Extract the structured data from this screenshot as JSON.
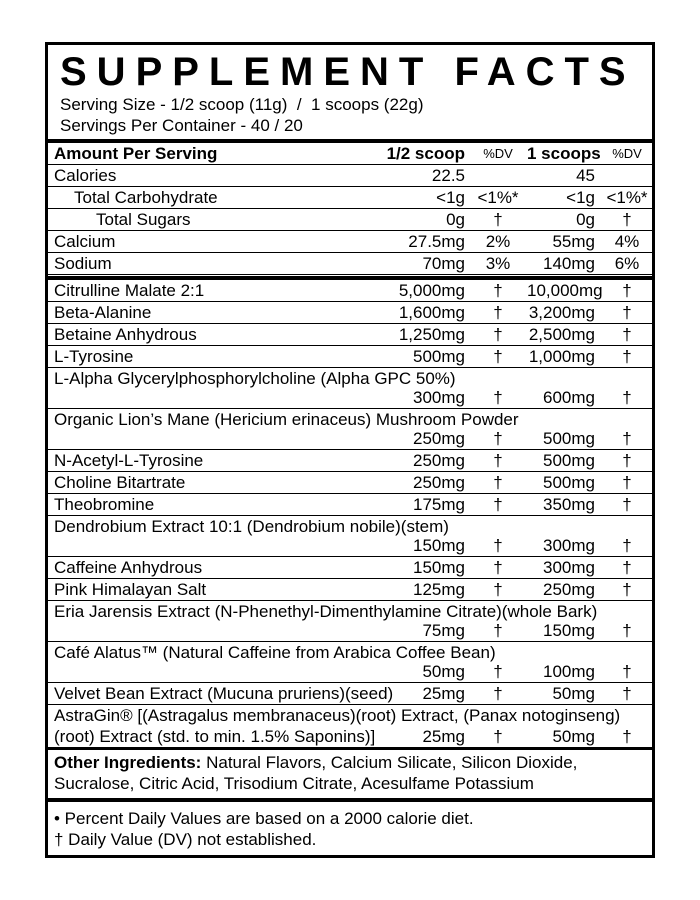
{
  "label": {
    "title": "SUPPLEMENT FACTS",
    "serving_size": "Serving Size - 1/2 scoop (11g)  /  1 scoops (22g)",
    "servings_per_container": "Servings Per Container - 40 / 20",
    "columns": {
      "amount_per_serving": "Amount Per Serving",
      "half_scoop": "1/2 scoop",
      "half_scoop_dv": "%DV",
      "one_scoop": "1 scoops",
      "one_scoop_dv": "%DV"
    },
    "nutrients": [
      {
        "name": "Calories",
        "amt1": "22.5",
        "dv1": "",
        "amt2": "45",
        "dv2": "",
        "indent": 0
      },
      {
        "name": "Total Carbohydrate",
        "amt1": "<1g",
        "dv1": "<1%*",
        "amt2": "<1g",
        "dv2": "<1%*",
        "indent": 1
      },
      {
        "name": "Total Sugars",
        "amt1": "0g",
        "dv1": "†",
        "amt2": "0g",
        "dv2": "†",
        "indent": 2
      },
      {
        "name": "Calcium",
        "amt1": "27.5mg",
        "dv1": "2%",
        "amt2": "55mg",
        "dv2": "4%",
        "indent": 0
      },
      {
        "name": "Sodium",
        "amt1": "70mg",
        "dv1": "3%",
        "amt2": "140mg",
        "dv2": "6%",
        "indent": 0
      }
    ],
    "ingredients": [
      {
        "name": "Citrulline Malate 2:1",
        "amt1": "5,000mg",
        "dv1": "†",
        "amt2": "10,000mg",
        "dv2": "†",
        "wrap": false
      },
      {
        "name": "Beta-Alanine",
        "amt1": "1,600mg",
        "dv1": "†",
        "amt2": "3,200mg",
        "dv2": "†",
        "wrap": false
      },
      {
        "name": "Betaine Anhydrous",
        "amt1": "1,250mg",
        "dv1": "†",
        "amt2": "2,500mg",
        "dv2": "†",
        "wrap": false
      },
      {
        "name": "L-Tyrosine",
        "amt1": "500mg",
        "dv1": "†",
        "amt2": "1,000mg",
        "dv2": "†",
        "wrap": false
      },
      {
        "name": "L-Alpha Glycerylphosphorylcholine (Alpha GPC 50%)",
        "amt1": "300mg",
        "dv1": "†",
        "amt2": "600mg",
        "dv2": "†",
        "wrap": true
      },
      {
        "name": "Organic Lion’s Mane (Hericium erinaceus) Mushroom Powder",
        "amt1": "250mg",
        "dv1": "†",
        "amt2": "500mg",
        "dv2": "†",
        "wrap": true
      },
      {
        "name": "N-Acetyl-L-Tyrosine",
        "amt1": "250mg",
        "dv1": "†",
        "amt2": "500mg",
        "dv2": "†",
        "wrap": false
      },
      {
        "name": "Choline Bitartrate",
        "amt1": "250mg",
        "dv1": "†",
        "amt2": "500mg",
        "dv2": "†",
        "wrap": false
      },
      {
        "name": "Theobromine",
        "amt1": "175mg",
        "dv1": "†",
        "amt2": "350mg",
        "dv2": "†",
        "wrap": false
      },
      {
        "name": "Dendrobium Extract 10:1 (Dendrobium nobile)(stem)",
        "amt1": "150mg",
        "dv1": "†",
        "amt2": "300mg",
        "dv2": "†",
        "wrap": true
      },
      {
        "name": "Caffeine Anhydrous",
        "amt1": "150mg",
        "dv1": "†",
        "amt2": "300mg",
        "dv2": "†",
        "wrap": false
      },
      {
        "name": "Pink Himalayan Salt",
        "amt1": "125mg",
        "dv1": "†",
        "amt2": "250mg",
        "dv2": "†",
        "wrap": false
      },
      {
        "name": "Eria Jarensis Extract (N-Phenethyl-Dimenthylamine Citrate)(whole Bark)",
        "amt1": "75mg",
        "dv1": "†",
        "amt2": "150mg",
        "dv2": "†",
        "wrap": true
      },
      {
        "name": "Café Alatus™ (Natural Caffeine from Arabica Coffee Bean)",
        "amt1": "50mg",
        "dv1": "†",
        "amt2": "100mg",
        "dv2": "†",
        "wrap": true
      },
      {
        "name": "Velvet Bean Extract (Mucuna pruriens)(seed)",
        "amt1": "25mg",
        "dv1": "†",
        "amt2": "50mg",
        "dv2": "†",
        "wrap": false
      },
      {
        "name": "AstraGin® [(Astragalus membranaceus)(root) Extract, (Panax notoginseng) (root) Extract (std. to min. 1.5% Saponins)]",
        "amt1": "25mg",
        "dv1": "†",
        "amt2": "50mg",
        "dv2": "†",
        "wrap": true
      }
    ],
    "other_ingredients": {
      "label": "Other Ingredients:",
      "text": " Natural Flavors, Calcium Silicate, Silicon Dioxide, Sucralose, Citric Acid, Trisodium Citrate, Acesulfame Potassium"
    },
    "footnotes": [
      "• Percent Daily Values are based on a 2000 calorie diet.",
      "† Daily Value (DV) not established."
    ],
    "colors": {
      "ink": "#000000",
      "paper": "#ffffff"
    }
  }
}
